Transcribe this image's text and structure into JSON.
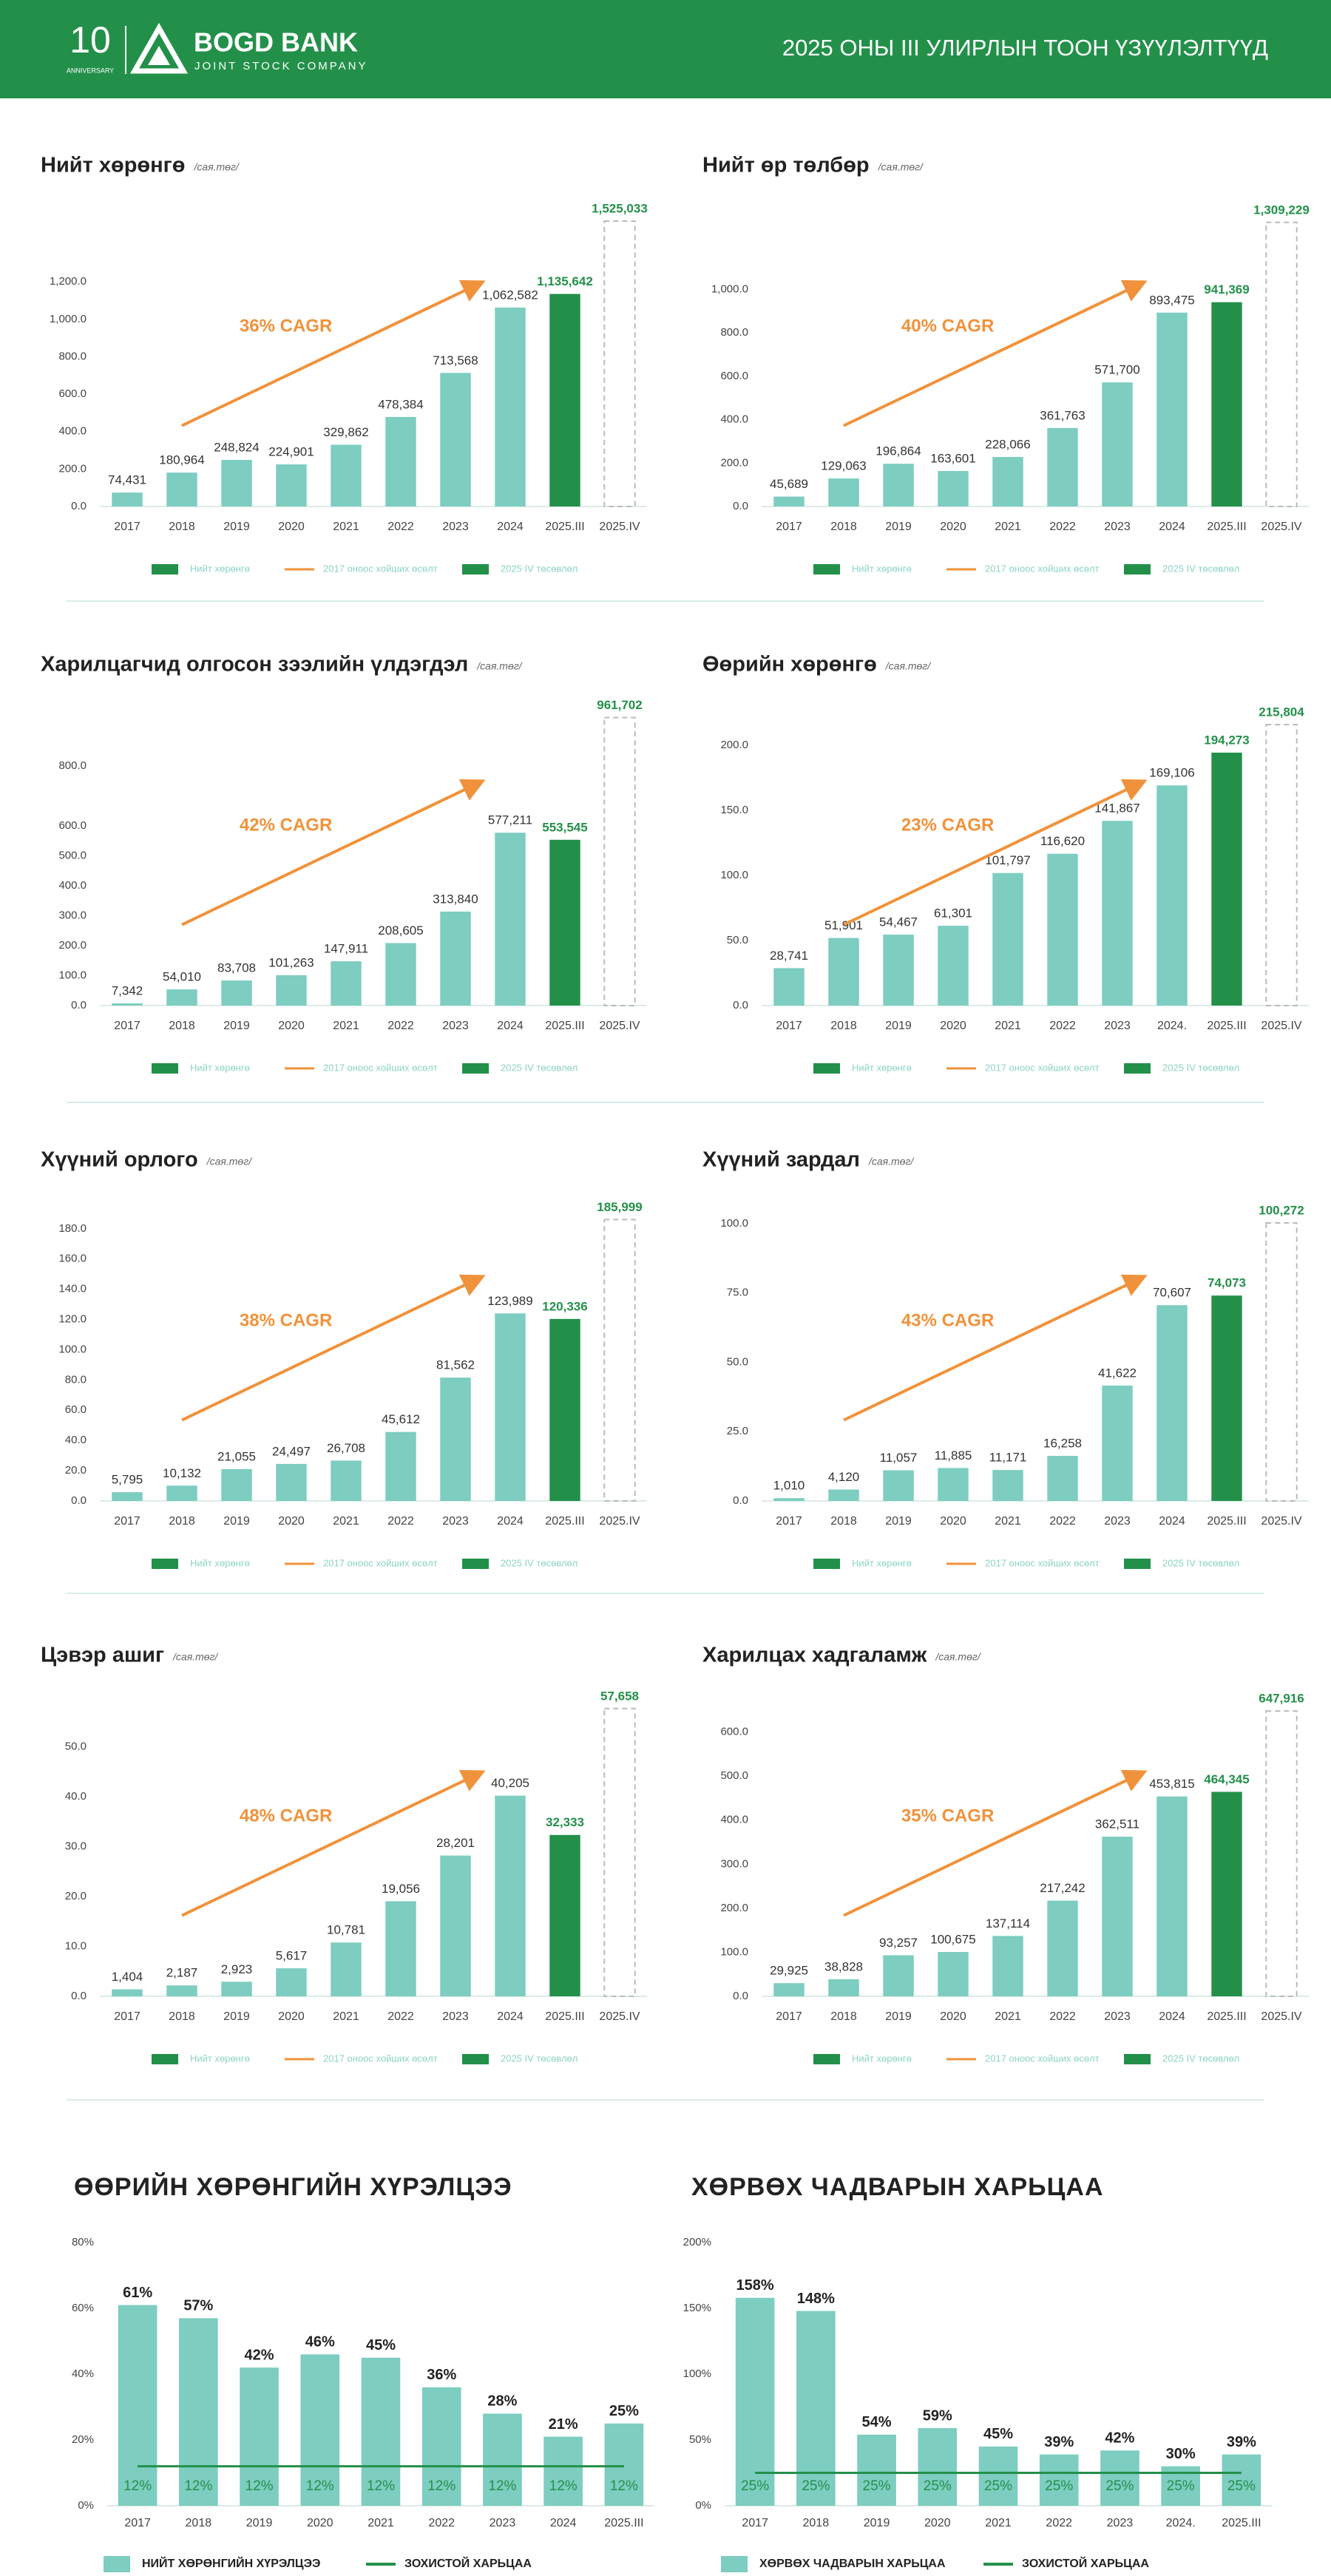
{
  "header": {
    "anniversary_number": "10",
    "anniversary_text": "ANNIVERSARY",
    "bank_name": "BOGD BANK",
    "bank_subtitle": "JOINT STOCK COMPANY",
    "report_title": "2025 ОНЫ III УЛИРЛЫН ТООН ҮЗҮҮЛЭЛТҮҮД"
  },
  "chart_data": [
    {
      "type": "bar",
      "title": "Нийт хөрөнгө",
      "unit": "/сая.төг/",
      "annotation": "36% CAGR",
      "categories": [
        "2017",
        "2018",
        "2019",
        "2020",
        "2021",
        "2022",
        "2023",
        "2024",
        "2025.III",
        "2025.IV"
      ],
      "values": [
        74.431,
        180.964,
        248.824,
        224.901,
        329.862,
        478.384,
        713.568,
        1062.582,
        1135.642,
        1525.033
      ],
      "value_labels": [
        "74,431",
        "180,964",
        "248,824",
        "224,901",
        "329,862",
        "478,384",
        "713,568",
        "1,062,582",
        "1,135,642",
        "1,525,033"
      ],
      "bar_colors": [
        "#7dcdc0",
        "#7dcdc0",
        "#7dcdc0",
        "#7dcdc0",
        "#7dcdc0",
        "#7dcdc0",
        "#7dcdc0",
        "#7dcdc0",
        "#23904a",
        "none"
      ],
      "forecast_outline": "#bbbbbb",
      "legend": [
        {
          "name": "Нийт хөрөнгө",
          "color": "#23904a",
          "kind": "bar"
        },
        {
          "name": "2017 оноос хойших өсөлт",
          "color": "#f0923b",
          "kind": "line"
        },
        {
          "name": "2025 IV төсөвлөл",
          "color": "#23904a",
          "kind": "bar"
        }
      ],
      "ylim": [
        0,
        1600
      ],
      "yticks": [
        {
          "value": 0,
          "label": "0.0"
        },
        {
          "value": 200,
          "label": "200.0"
        },
        {
          "value": 400,
          "label": "400.0"
        },
        {
          "value": 600,
          "label": "600.0"
        },
        {
          "value": 800,
          "label": "800.0"
        },
        {
          "value": 1000,
          "label": "1,000.0"
        },
        {
          "value": 1200,
          "label": "1,200.0"
        }
      ]
    },
    {
      "type": "bar",
      "title": "Нийт өр төлбөр",
      "unit": "/сая.төг/",
      "annotation": "40% CAGR",
      "categories": [
        "2017",
        "2018",
        "2019",
        "2020",
        "2021",
        "2022",
        "2023",
        "2024",
        "2025.III",
        "2025.IV"
      ],
      "values": [
        45.689,
        129.063,
        196.864,
        163.601,
        228.066,
        361.763,
        571.7,
        893.475,
        941.369,
        1309.229
      ],
      "value_labels": [
        "45,689",
        "129,063",
        "196,864",
        "163,601",
        "228,066",
        "361,763",
        "571,700",
        "893,475",
        "941,369",
        "1,309,229"
      ],
      "bar_colors": [
        "#7dcdc0",
        "#7dcdc0",
        "#7dcdc0",
        "#7dcdc0",
        "#7dcdc0",
        "#7dcdc0",
        "#7dcdc0",
        "#7dcdc0",
        "#23904a",
        "none"
      ],
      "forecast_outline": "#bbbbbb",
      "legend": [
        {
          "name": "Нийт хөрөнгө",
          "color": "#23904a",
          "kind": "bar"
        },
        {
          "name": "2017 оноос хойших өсөлт",
          "color": "#f0923b",
          "kind": "line"
        },
        {
          "name": "2025 IV төсөвлөл",
          "color": "#23904a",
          "kind": "bar"
        }
      ],
      "ylim": [
        0,
        1380
      ],
      "yticks": [
        {
          "value": 0,
          "label": "0.0"
        },
        {
          "value": 200,
          "label": "200.0"
        },
        {
          "value": 400,
          "label": "400.0"
        },
        {
          "value": 600,
          "label": "600.0"
        },
        {
          "value": 800,
          "label": "800.0"
        },
        {
          "value": 1000,
          "label": "1,000.0"
        }
      ]
    },
    {
      "type": "bar",
      "title": "Харилцагчид олгосон зээлийн үлдэгдэл",
      "unit": "/сая.төг/",
      "annotation": "42% CAGR",
      "categories": [
        "2017",
        "2018",
        "2019",
        "2020",
        "2021",
        "2022",
        "2023",
        "2024",
        "2025.III",
        "2025.IV"
      ],
      "values": [
        7.342,
        54.01,
        83.708,
        101.263,
        147.911,
        208.605,
        313.84,
        577.211,
        553.545,
        961.702
      ],
      "value_labels": [
        "7,342",
        "54,010",
        "83,708",
        "101,263",
        "147,911",
        "208,605",
        "313,840",
        "577,211",
        "553,545",
        "961,702"
      ],
      "bar_colors": [
        "#7dcdc0",
        "#7dcdc0",
        "#7dcdc0",
        "#7dcdc0",
        "#7dcdc0",
        "#7dcdc0",
        "#7dcdc0",
        "#7dcdc0",
        "#23904a",
        "none"
      ],
      "forecast_outline": "#bbbbbb",
      "legend": [
        {
          "name": "Нийт хөрөнгө",
          "color": "#23904a",
          "kind": "bar"
        },
        {
          "name": "2017 оноос хойших өсөлт",
          "color": "#f0923b",
          "kind": "line"
        },
        {
          "name": "2025 IV төсөвлөл",
          "color": "#23904a",
          "kind": "bar"
        }
      ],
      "ylim": [
        0,
        1000
      ],
      "yticks": [
        {
          "value": 0,
          "label": "0.0"
        },
        {
          "value": 100,
          "label": "100.0"
        },
        {
          "value": 200,
          "label": "200.0"
        },
        {
          "value": 300,
          "label": "300.0"
        },
        {
          "value": 400,
          "label": "400.0"
        },
        {
          "value": 500,
          "label": "500.0"
        },
        {
          "value": 600,
          "label": "600.0"
        },
        {
          "value": 800,
          "label": "800.0"
        }
      ]
    },
    {
      "type": "bar",
      "title": "Өөрийн хөрөнгө",
      "unit": "/сая.төг/",
      "annotation": "23% CAGR",
      "categories": [
        "2017",
        "2018",
        "2019",
        "2020",
        "2021",
        "2022",
        "2023",
        "2024.",
        "2025.III",
        "2025.IV"
      ],
      "values": [
        28.741,
        51.901,
        54.467,
        61.301,
        101.797,
        116.62,
        141.867,
        169.106,
        194.273,
        215.804
      ],
      "value_labels": [
        "28,741",
        "51,901",
        "54,467",
        "61,301",
        "101,797",
        "116,620",
        "141,867",
        "169,106",
        "194,273",
        "215,804"
      ],
      "bar_colors": [
        "#7dcdc0",
        "#7dcdc0",
        "#7dcdc0",
        "#7dcdc0",
        "#7dcdc0",
        "#7dcdc0",
        "#7dcdc0",
        "#7dcdc0",
        "#23904a",
        "none"
      ],
      "forecast_outline": "#bbbbbb",
      "legend": [
        {
          "name": "Нийт хөрөнгө",
          "color": "#23904a",
          "kind": "bar"
        },
        {
          "name": "2017 оноос хойших өсөлт",
          "color": "#f0923b",
          "kind": "line"
        },
        {
          "name": "2025 IV төсөвлөл",
          "color": "#23904a",
          "kind": "bar"
        }
      ],
      "ylim": [
        0,
        230
      ],
      "yticks": [
        {
          "value": 0,
          "label": "0.0"
        },
        {
          "value": 50,
          "label": "50.0"
        },
        {
          "value": 100,
          "label": "100.0"
        },
        {
          "value": 150,
          "label": "150.0"
        },
        {
          "value": 200,
          "label": "200.0"
        }
      ]
    },
    {
      "type": "bar",
      "title": "Хүүний орлого",
      "unit": "/сая.төг/",
      "annotation": "38% CAGR",
      "categories": [
        "2017",
        "2018",
        "2019",
        "2020",
        "2021",
        "2022",
        "2023",
        "2024",
        "2025.III",
        "2025.IV"
      ],
      "values": [
        5.795,
        10.132,
        21.055,
        24.497,
        26.708,
        45.612,
        81.562,
        123.989,
        120.336,
        185.999
      ],
      "value_labels": [
        "5,795",
        "10,132",
        "21,055",
        "24,497",
        "26,708",
        "45,612",
        "81,562",
        "123,989",
        "120,336",
        "185,999"
      ],
      "bar_colors": [
        "#7dcdc0",
        "#7dcdc0",
        "#7dcdc0",
        "#7dcdc0",
        "#7dcdc0",
        "#7dcdc0",
        "#7dcdc0",
        "#7dcdc0",
        "#23904a",
        "none"
      ],
      "forecast_outline": "#bbbbbb",
      "legend": [
        {
          "name": "Нийт хөрөнгө",
          "color": "#23904a",
          "kind": "bar"
        },
        {
          "name": "2017 оноос хойших өсөлт",
          "color": "#f0923b",
          "kind": "line"
        },
        {
          "name": "2025 IV төсөвлөл",
          "color": "#23904a",
          "kind": "bar"
        }
      ],
      "ylim": [
        0,
        198
      ],
      "yticks": [
        {
          "value": 0,
          "label": "0.0"
        },
        {
          "value": 20,
          "label": "20.0"
        },
        {
          "value": 40,
          "label": "40.0"
        },
        {
          "value": 60,
          "label": "60.0"
        },
        {
          "value": 80,
          "label": "80.0"
        },
        {
          "value": 100,
          "label": "100.0"
        },
        {
          "value": 120,
          "label": "120.0"
        },
        {
          "value": 140,
          "label": "140.0"
        },
        {
          "value": 160,
          "label": "160.0"
        },
        {
          "value": 180,
          "label": "180.0"
        }
      ]
    },
    {
      "type": "bar",
      "title": "Хүүний зардал",
      "unit": "/сая.төг/",
      "annotation": "43% CAGR",
      "categories": [
        "2017",
        "2018",
        "2019",
        "2020",
        "2021",
        "2022",
        "2023",
        "2024",
        "2025.III",
        "2025.IV"
      ],
      "values": [
        1.01,
        4.12,
        11.057,
        11.885,
        11.171,
        16.258,
        41.622,
        70.607,
        74.073,
        100.272
      ],
      "value_labels": [
        "1,010",
        "4,120",
        "11,057",
        "11,885",
        "11,171",
        "16,258",
        "41,622",
        "70,607",
        "74,073",
        "100,272"
      ],
      "bar_colors": [
        "#7dcdc0",
        "#7dcdc0",
        "#7dcdc0",
        "#7dcdc0",
        "#7dcdc0",
        "#7dcdc0",
        "#7dcdc0",
        "#7dcdc0",
        "#23904a",
        "none"
      ],
      "forecast_outline": "#bbbbbb",
      "legend": [
        {
          "name": "Нийт хөрөнгө",
          "color": "#23904a",
          "kind": "bar"
        },
        {
          "name": "2017 оноос хойших өсөлт",
          "color": "#f0923b",
          "kind": "line"
        },
        {
          "name": "2025 IV төсөвлөл",
          "color": "#23904a",
          "kind": "bar"
        }
      ],
      "ylim": [
        0,
        108
      ],
      "yticks": [
        {
          "value": 0,
          "label": "0.0"
        },
        {
          "value": 25,
          "label": "25.0"
        },
        {
          "value": 50,
          "label": "50.0"
        },
        {
          "value": 75,
          "label": "75.0"
        },
        {
          "value": 100,
          "label": "100.0"
        }
      ]
    },
    {
      "type": "bar",
      "title": "Цэвэр ашиг",
      "unit": "/сая.төг/",
      "annotation": "48% CAGR",
      "categories": [
        "2017",
        "2018",
        "2019",
        "2020",
        "2021",
        "2022",
        "2023",
        "2024",
        "2025.III",
        "2025.IV"
      ],
      "values": [
        1.404,
        2.187,
        2.923,
        5.617,
        10.781,
        19.056,
        28.201,
        40.205,
        32.333,
        57.658
      ],
      "value_labels": [
        "1,404",
        "2,187",
        "2,923",
        "5,617",
        "10,781",
        "19,056",
        "28,201",
        "40,205",
        "32,333",
        "57,658"
      ],
      "bar_colors": [
        "#7dcdc0",
        "#7dcdc0",
        "#7dcdc0",
        "#7dcdc0",
        "#7dcdc0",
        "#7dcdc0",
        "#7dcdc0",
        "#7dcdc0",
        "#23904a",
        "none"
      ],
      "forecast_outline": "#bbbbbb",
      "legend": [
        {
          "name": "Нийт хөрөнгө",
          "color": "#23904a",
          "kind": "bar"
        },
        {
          "name": "2017 оноос хойших өсөлт",
          "color": "#f0923b",
          "kind": "line"
        },
        {
          "name": "2025 IV төсөвлөл",
          "color": "#23904a",
          "kind": "bar"
        }
      ],
      "ylim": [
        0,
        60
      ],
      "yticks": [
        {
          "value": 0,
          "label": "0.0"
        },
        {
          "value": 10,
          "label": "10.0"
        },
        {
          "value": 20,
          "label": "20.0"
        },
        {
          "value": 30,
          "label": "30.0"
        },
        {
          "value": 40,
          "label": "40.0"
        },
        {
          "value": 50,
          "label": "50.0"
        }
      ]
    },
    {
      "type": "bar",
      "title": "Харилцах хадгаламж",
      "unit": "/сая.төг/",
      "annotation": "35% CAGR",
      "categories": [
        "2017",
        "2018",
        "2019",
        "2020",
        "2021",
        "2022",
        "2023",
        "2024",
        "2025.III",
        "2025.IV"
      ],
      "values": [
        29.925,
        38.828,
        93.257,
        100.675,
        137.114,
        217.242,
        362.511,
        453.815,
        464.345,
        647.916
      ],
      "value_labels": [
        "29,925",
        "38,828",
        "93,257",
        "100,675",
        "137,114",
        "217,242",
        "362,511",
        "453,815",
        "464,345",
        "647,916"
      ],
      "bar_colors": [
        "#7dcdc0",
        "#7dcdc0",
        "#7dcdc0",
        "#7dcdc0",
        "#7dcdc0",
        "#7dcdc0",
        "#7dcdc0",
        "#7dcdc0",
        "#23904a",
        "none"
      ],
      "forecast_outline": "#bbbbbb",
      "legend": [
        {
          "name": "Нийт хөрөнгө",
          "color": "#23904a",
          "kind": "bar"
        },
        {
          "name": "2017 оноос хойших өсөлт",
          "color": "#f0923b",
          "kind": "line"
        },
        {
          "name": "2025 IV төсөвлөл",
          "color": "#23904a",
          "kind": "bar"
        }
      ],
      "ylim": [
        0,
        680
      ],
      "yticks": [
        {
          "value": 0,
          "label": "0.0"
        },
        {
          "value": 100,
          "label": "100.0"
        },
        {
          "value": 200,
          "label": "200.0"
        },
        {
          "value": 300,
          "label": "300.0"
        },
        {
          "value": 400,
          "label": "400.0"
        },
        {
          "value": 500,
          "label": "500.0"
        },
        {
          "value": 600,
          "label": "600.0"
        }
      ]
    },
    {
      "type": "combo",
      "title": "ӨӨРИЙН ХӨРӨНГИЙН ХҮРЭЛЦЭЭ",
      "categories": [
        "2017",
        "2018",
        "2019",
        "2020",
        "2021",
        "2022",
        "2023",
        "2024",
        "2025.III"
      ],
      "series": [
        {
          "name": "НИЙТ ХӨРӨНГИЙН ХҮРЭЛЦЭЭ",
          "color": "#7dcdc0",
          "kind": "bar",
          "values": [
            61,
            57,
            42,
            46,
            45,
            36,
            28,
            21,
            25
          ],
          "value_labels": [
            "61%",
            "57%",
            "42%",
            "46%",
            "45%",
            "36%",
            "28%",
            "21%",
            "25%"
          ]
        },
        {
          "name": "ЗОХИСТОЙ ХАРЬЦАА",
          "color": "#23904a",
          "kind": "line",
          "values": [
            12,
            12,
            12,
            12,
            12,
            12,
            12,
            12,
            12
          ],
          "value_labels": [
            "12%",
            "12%",
            "12%",
            "12%",
            "12%",
            "12%",
            "12%",
            "12%",
            "12%"
          ]
        }
      ],
      "ylim": [
        0,
        80
      ],
      "yticks": [
        {
          "value": 0,
          "label": "0%"
        },
        {
          "value": 20,
          "label": "20%"
        },
        {
          "value": 40,
          "label": "40%"
        },
        {
          "value": 60,
          "label": "60%"
        },
        {
          "value": 80,
          "label": "80%"
        }
      ]
    },
    {
      "type": "combo",
      "title": "ХӨРВӨХ ЧАДВАРЫН ХАРЬЦАА",
      "categories": [
        "2017",
        "2018",
        "2019",
        "2020",
        "2021",
        "2022",
        "2023",
        "2024.",
        "2025.III"
      ],
      "series": [
        {
          "name": "ХӨРВӨХ ЧАДВАРЫН ХАРЬЦАА",
          "color": "#7dcdc0",
          "kind": "bar",
          "values": [
            158,
            148,
            54,
            59,
            45,
            39,
            42,
            30,
            39
          ],
          "value_labels": [
            "158%",
            "148%",
            "54%",
            "59%",
            "45%",
            "39%",
            "42%",
            "30%",
            "39%"
          ]
        },
        {
          "name": "ЗОХИСТОЙ ХАРЬЦАА",
          "color": "#23904a",
          "kind": "line",
          "values": [
            25,
            25,
            25,
            25,
            25,
            25,
            25,
            25,
            25
          ],
          "value_labels": [
            "25%",
            "25%",
            "25%",
            "25%",
            "25%",
            "25%",
            "25%",
            "25%",
            "25%"
          ]
        }
      ],
      "ylim": [
        0,
        200
      ],
      "yticks": [
        {
          "value": 0,
          "label": "0%"
        },
        {
          "value": 50,
          "label": "50%"
        },
        {
          "value": 100,
          "label": "100%"
        },
        {
          "value": 150,
          "label": "150%"
        },
        {
          "value": 200,
          "label": "200%"
        }
      ]
    }
  ]
}
